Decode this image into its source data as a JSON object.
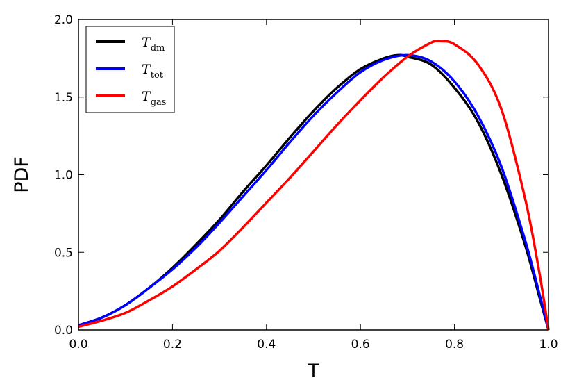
{
  "chart_data": {
    "type": "line",
    "xlabel": "T",
    "ylabel": "PDF",
    "xlim": [
      0.0,
      1.0
    ],
    "ylim": [
      0.0,
      2.0
    ],
    "xticks": [
      "0.0",
      "0.2",
      "0.4",
      "0.6",
      "0.8",
      "1.0"
    ],
    "yticks": [
      "0.0",
      "0.5",
      "1.0",
      "1.5",
      "2.0"
    ],
    "grid": false,
    "legend_position": "top-left",
    "series": [
      {
        "name": "T",
        "subscript": "dm",
        "color": "#000000",
        "x": [
          0.0,
          0.05,
          0.1,
          0.15,
          0.2,
          0.25,
          0.3,
          0.35,
          0.4,
          0.45,
          0.5,
          0.55,
          0.6,
          0.65,
          0.68,
          0.7,
          0.75,
          0.8,
          0.85,
          0.9,
          0.95,
          0.98,
          1.0
        ],
        "y": [
          0.03,
          0.08,
          0.16,
          0.27,
          0.4,
          0.55,
          0.71,
          0.89,
          1.06,
          1.24,
          1.41,
          1.56,
          1.68,
          1.75,
          1.77,
          1.76,
          1.71,
          1.56,
          1.34,
          1.0,
          0.55,
          0.22,
          0.0
        ]
      },
      {
        "name": "T",
        "subscript": "tot",
        "color": "#0000ff",
        "x": [
          0.0,
          0.05,
          0.1,
          0.15,
          0.2,
          0.25,
          0.3,
          0.35,
          0.4,
          0.45,
          0.5,
          0.55,
          0.6,
          0.65,
          0.7,
          0.75,
          0.8,
          0.85,
          0.9,
          0.95,
          0.98,
          1.0
        ],
        "y": [
          0.03,
          0.08,
          0.16,
          0.27,
          0.39,
          0.53,
          0.69,
          0.86,
          1.03,
          1.21,
          1.38,
          1.53,
          1.66,
          1.74,
          1.77,
          1.73,
          1.6,
          1.38,
          1.05,
          0.58,
          0.24,
          0.0
        ]
      },
      {
        "name": "T",
        "subscript": "gas",
        "color": "#ff0000",
        "x": [
          0.0,
          0.05,
          0.1,
          0.15,
          0.2,
          0.25,
          0.3,
          0.35,
          0.4,
          0.45,
          0.5,
          0.55,
          0.6,
          0.65,
          0.7,
          0.75,
          0.77,
          0.8,
          0.85,
          0.9,
          0.95,
          0.98,
          1.0
        ],
        "y": [
          0.02,
          0.06,
          0.11,
          0.19,
          0.28,
          0.39,
          0.51,
          0.66,
          0.82,
          0.98,
          1.15,
          1.32,
          1.48,
          1.63,
          1.76,
          1.85,
          1.86,
          1.84,
          1.71,
          1.42,
          0.85,
          0.38,
          0.0
        ]
      }
    ]
  }
}
